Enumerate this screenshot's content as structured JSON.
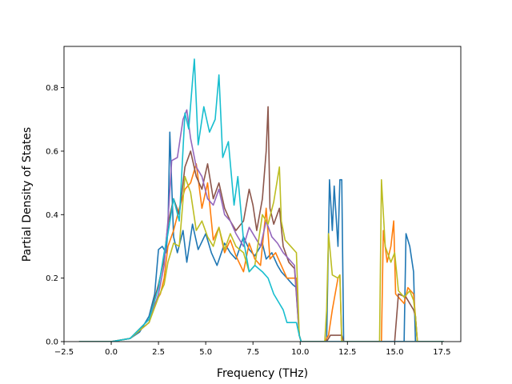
{
  "chart_data": {
    "type": "line",
    "title": "",
    "xlabel": "Frequency (THz)",
    "ylabel": "Partial Density of States",
    "xlim": [
      -2.5,
      18.5
    ],
    "ylim": [
      0.0,
      0.93
    ],
    "xticks": [
      -2.5,
      0.0,
      2.5,
      5.0,
      7.5,
      10.0,
      12.5,
      15.0,
      17.5
    ],
    "xtick_labels": [
      "−2.5",
      "0.0",
      "2.5",
      "5.0",
      "7.5",
      "10.0",
      "12.5",
      "15.0",
      "17.5"
    ],
    "yticks": [
      0.0,
      0.2,
      0.4,
      0.6,
      0.8
    ],
    "ytick_labels": [
      "0.0",
      "0.2",
      "0.4",
      "0.6",
      "0.8"
    ],
    "grid": false,
    "legend": "none",
    "series": [
      {
        "color": "#1f77b4",
        "x": [
          -1.7,
          0,
          1,
          1.5,
          2,
          2.3,
          2.5,
          2.7,
          2.9,
          3.0,
          3.1,
          3.3,
          3.5,
          3.8,
          4.0,
          4.3,
          4.6,
          5.0,
          5.3,
          5.6,
          6.0,
          6.3,
          6.6,
          7.0,
          7.3,
          7.6,
          8.0,
          8.2,
          8.5,
          8.8,
          9.0,
          9.3,
          9.6,
          9.8,
          9.95,
          10.05,
          11.0,
          11.4,
          11.55,
          11.7,
          11.8,
          12.0,
          12.1,
          12.2,
          12.3,
          14.2,
          14.4,
          15.0,
          15.5,
          15.6,
          15.8,
          16.0,
          16.1,
          16.2,
          17.6
        ],
        "y": [
          0.0,
          0.0,
          0.01,
          0.03,
          0.08,
          0.15,
          0.29,
          0.3,
          0.28,
          0.35,
          0.66,
          0.33,
          0.28,
          0.35,
          0.25,
          0.37,
          0.29,
          0.34,
          0.28,
          0.24,
          0.31,
          0.28,
          0.26,
          0.33,
          0.29,
          0.27,
          0.31,
          0.26,
          0.28,
          0.24,
          0.22,
          0.2,
          0.18,
          0.17,
          0.02,
          0.0,
          0.0,
          0.0,
          0.51,
          0.35,
          0.49,
          0.3,
          0.51,
          0.51,
          0.0,
          0.0,
          0.0,
          0.0,
          0.0,
          0.34,
          0.3,
          0.22,
          0.0,
          0.0,
          0.0
        ]
      },
      {
        "color": "#ff7f0e",
        "x": [
          -1.7,
          0,
          1,
          2,
          2.3,
          2.6,
          2.8,
          3.0,
          3.3,
          3.6,
          3.9,
          4.2,
          4.5,
          4.8,
          5.1,
          5.4,
          5.7,
          6.0,
          6.3,
          6.6,
          7.0,
          7.3,
          7.6,
          7.9,
          8.2,
          8.4,
          8.7,
          9.0,
          9.3,
          9.6,
          9.8,
          9.95,
          10.05,
          11.3,
          11.5,
          11.7,
          12.0,
          12.1,
          12.2,
          14.3,
          14.4,
          14.6,
          14.8,
          14.95,
          15.05,
          15.2,
          15.5,
          15.7,
          16.0,
          16.1,
          16.2,
          17.6
        ],
        "y": [
          0.0,
          0.0,
          0.01,
          0.06,
          0.12,
          0.15,
          0.2,
          0.3,
          0.35,
          0.42,
          0.48,
          0.5,
          0.56,
          0.42,
          0.5,
          0.32,
          0.36,
          0.28,
          0.32,
          0.27,
          0.22,
          0.31,
          0.26,
          0.24,
          0.42,
          0.26,
          0.28,
          0.24,
          0.2,
          0.2,
          0.2,
          0.02,
          0.0,
          0.0,
          0.02,
          0.1,
          0.2,
          0.21,
          0.0,
          0.0,
          0.35,
          0.25,
          0.3,
          0.38,
          0.15,
          0.14,
          0.12,
          0.17,
          0.15,
          0.08,
          0.0,
          0.0
        ]
      },
      {
        "color": "#8c564b",
        "x": [
          -1.7,
          0,
          1,
          2,
          2.5,
          2.8,
          3.0,
          3.3,
          3.6,
          3.9,
          4.2,
          4.5,
          4.8,
          5.1,
          5.4,
          5.7,
          6.0,
          6.3,
          6.6,
          7.0,
          7.3,
          7.5,
          7.7,
          8.0,
          8.2,
          8.3,
          8.4,
          8.6,
          8.9,
          9.1,
          9.4,
          9.7,
          9.95,
          10.05,
          11.4,
          11.6,
          12.2,
          12.3,
          14.3,
          14.5,
          15.0,
          15.2,
          15.6,
          16.0,
          16.1,
          16.2,
          17.6
        ],
        "y": [
          0.0,
          0.0,
          0.01,
          0.07,
          0.18,
          0.26,
          0.37,
          0.45,
          0.4,
          0.55,
          0.6,
          0.52,
          0.48,
          0.56,
          0.45,
          0.5,
          0.42,
          0.38,
          0.35,
          0.38,
          0.48,
          0.43,
          0.35,
          0.45,
          0.6,
          0.74,
          0.42,
          0.37,
          0.42,
          0.3,
          0.25,
          0.23,
          0.02,
          0.0,
          0.0,
          0.02,
          0.02,
          0.0,
          0.0,
          0.0,
          0.0,
          0.15,
          0.14,
          0.1,
          0.08,
          0.0,
          0.0
        ]
      },
      {
        "color": "#9467bd",
        "x": [
          -1.7,
          0,
          1,
          2,
          2.5,
          2.8,
          3.0,
          3.2,
          3.5,
          3.8,
          4.0,
          4.2,
          4.5,
          4.8,
          5.1,
          5.4,
          5.7,
          6.0,
          6.3,
          6.6,
          7.0,
          7.3,
          7.6,
          7.9,
          8.2,
          8.5,
          8.8,
          9.1,
          9.4,
          9.7,
          9.95,
          10.05,
          17.6
        ],
        "y": [
          0.0,
          0.0,
          0.01,
          0.06,
          0.15,
          0.24,
          0.38,
          0.57,
          0.58,
          0.7,
          0.73,
          0.64,
          0.55,
          0.52,
          0.45,
          0.43,
          0.48,
          0.4,
          0.38,
          0.34,
          0.3,
          0.36,
          0.33,
          0.3,
          0.38,
          0.33,
          0.31,
          0.28,
          0.26,
          0.24,
          0.02,
          0.0,
          0.0
        ]
      },
      {
        "color": "#bcbd22",
        "x": [
          -1.7,
          0,
          1,
          2,
          2.5,
          2.8,
          3.0,
          3.3,
          3.6,
          3.9,
          4.2,
          4.5,
          4.8,
          5.1,
          5.4,
          5.7,
          6.0,
          6.3,
          6.6,
          7.0,
          7.3,
          7.6,
          8.0,
          8.3,
          8.6,
          8.9,
          9.0,
          9.2,
          9.5,
          9.8,
          9.95,
          10.05,
          11.3,
          11.4,
          11.5,
          11.7,
          12.0,
          12.1,
          12.2,
          14.2,
          14.3,
          14.5,
          14.8,
          15.0,
          15.2,
          15.5,
          15.8,
          16.0,
          16.1,
          16.2,
          17.6
        ],
        "y": [
          0.0,
          0.0,
          0.01,
          0.06,
          0.14,
          0.18,
          0.25,
          0.31,
          0.3,
          0.52,
          0.47,
          0.35,
          0.38,
          0.33,
          0.3,
          0.36,
          0.29,
          0.34,
          0.3,
          0.28,
          0.22,
          0.24,
          0.4,
          0.37,
          0.44,
          0.55,
          0.38,
          0.32,
          0.3,
          0.28,
          0.02,
          0.0,
          0.0,
          0.1,
          0.34,
          0.21,
          0.2,
          0.21,
          0.0,
          0.0,
          0.51,
          0.3,
          0.25,
          0.28,
          0.16,
          0.14,
          0.16,
          0.13,
          0.08,
          0.0,
          0.0
        ]
      },
      {
        "color": "#17becf",
        "x": [
          -1.7,
          0,
          1,
          2,
          2.5,
          2.8,
          3.0,
          3.3,
          3.6,
          3.9,
          4.1,
          4.3,
          4.4,
          4.6,
          4.9,
          5.2,
          5.5,
          5.7,
          5.9,
          6.2,
          6.5,
          6.7,
          7.0,
          7.3,
          7.6,
          8.0,
          8.3,
          8.6,
          8.9,
          9.1,
          9.3,
          9.5,
          9.8,
          9.95,
          10.05,
          17.6
        ],
        "y": [
          0.0,
          0.0,
          0.01,
          0.07,
          0.17,
          0.28,
          0.34,
          0.45,
          0.38,
          0.72,
          0.67,
          0.82,
          0.89,
          0.62,
          0.74,
          0.66,
          0.7,
          0.84,
          0.58,
          0.63,
          0.43,
          0.52,
          0.32,
          0.22,
          0.24,
          0.22,
          0.2,
          0.15,
          0.12,
          0.1,
          0.06,
          0.06,
          0.06,
          0.02,
          0.0,
          0.0
        ]
      }
    ]
  }
}
